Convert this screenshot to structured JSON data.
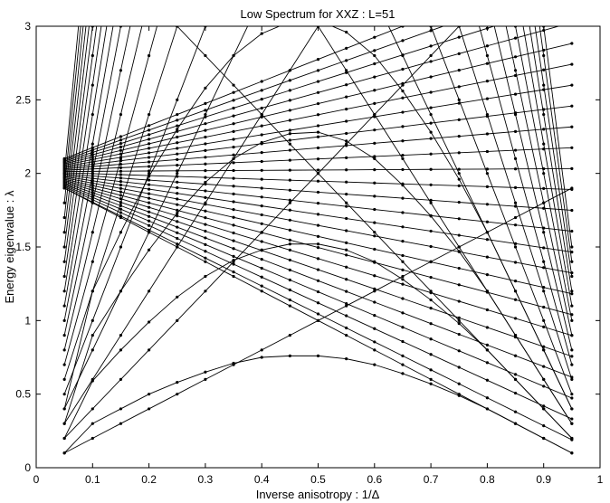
{
  "chart_data": {
    "type": "line",
    "title": "Low Spectrum for XXZ : L=51",
    "xlabel": "Inverse anisotropy : 1/Δ",
    "ylabel": "Energy eigenvalue : λ",
    "xlim": [
      0,
      1
    ],
    "ylim": [
      0,
      3
    ],
    "x_ticks": [
      0,
      0.1,
      0.2,
      0.3,
      0.4,
      0.5,
      0.6,
      0.7,
      0.8,
      0.9,
      1
    ],
    "y_ticks": [
      0,
      0.5,
      1,
      1.5,
      2,
      2.5,
      3
    ],
    "x_tick_labels": [
      "0",
      "0.1",
      "0.2",
      "0.3",
      "0.4",
      "0.5",
      "0.6",
      "0.7",
      "0.8",
      "0.9",
      "1"
    ],
    "y_tick_labels": [
      "0",
      "0.5",
      "1",
      "1.5",
      "2",
      "2.5",
      "3"
    ],
    "grid": false,
    "legend": "none",
    "line_color": "#000000",
    "marker": "dot",
    "x": [
      0.05,
      0.1,
      0.15,
      0.2,
      0.25,
      0.3,
      0.35,
      0.4,
      0.45,
      0.5,
      0.55,
      0.6,
      0.65,
      0.7,
      0.75,
      0.8,
      0.85,
      0.9,
      0.95
    ],
    "description_families": {
      "single_magnon_bands": {
        "low_end_value_at_x_0_05": 1.9,
        "high_end_value_at_x_0_05": 2.1,
        "band_count": 24
      },
      "fan_lines_from_origin_slopes": [
        2,
        4,
        6,
        8,
        10,
        12,
        14,
        16,
        18,
        20,
        22,
        24,
        26,
        28,
        30,
        32,
        34,
        36,
        38,
        40
      ],
      "fan_lines_from_two_slopes": [
        -2,
        -4,
        -6,
        -8,
        -10,
        -12,
        -14,
        -16,
        -18,
        -20,
        -22,
        -24,
        -26,
        -28,
        -30
      ]
    },
    "arcs": [
      {
        "values": [
          0.1,
          0.3,
          0.4,
          0.5,
          0.58,
          0.65,
          0.71,
          0.75,
          0.76,
          0.76,
          0.74,
          0.7,
          0.64,
          0.57,
          0.49,
          0.4,
          0.3,
          0.2,
          0.1
        ]
      },
      {
        "values": [
          0.2,
          0.59,
          0.8,
          0.99,
          1.16,
          1.3,
          1.41,
          1.48,
          1.52,
          1.52,
          1.48,
          1.4,
          1.28,
          1.14,
          0.98,
          0.8,
          0.6,
          0.4,
          0.2
        ]
      },
      {
        "values": [
          0.3,
          0.9,
          1.2,
          1.48,
          1.73,
          1.94,
          2.1,
          2.21,
          2.27,
          2.28,
          2.22,
          2.1,
          1.92,
          1.71,
          1.47,
          1.2,
          0.9,
          0.6,
          0.3
        ]
      },
      {
        "values": [
          0.4,
          1.2,
          1.6,
          1.98,
          2.3,
          2.58,
          2.8,
          2.95,
          3.03,
          3.04,
          2.96,
          2.8,
          2.56,
          2.28,
          1.96,
          1.6,
          1.2,
          0.8,
          0.4
        ]
      }
    ]
  }
}
